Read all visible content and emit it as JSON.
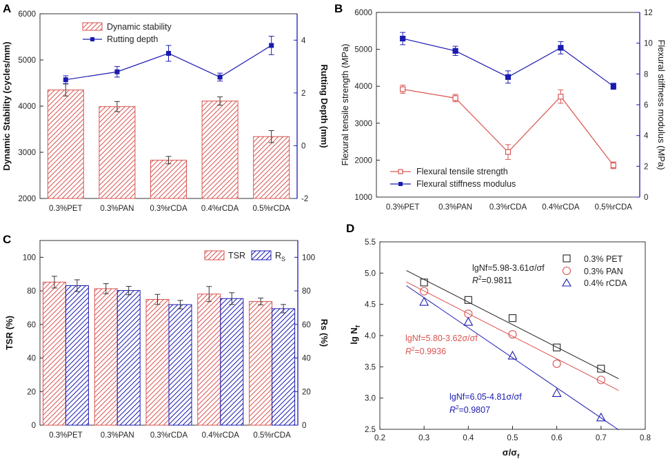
{
  "chart_data": [
    {
      "panel": "A",
      "type": "bar+line",
      "categories": [
        "0.3%PET",
        "0.3%PAN",
        "0.3%rCDA",
        "0.4%rCDA",
        "0.5%rCDA"
      ],
      "left_axis": {
        "label": "Dynamic Stability (cycles/mm)",
        "lim": [
          2000,
          6000
        ],
        "ticks": [
          2000,
          3000,
          4000,
          5000,
          6000
        ]
      },
      "right_axis": {
        "label": "Rutting Depth (mm)",
        "lim": [
          -2,
          5
        ],
        "ticks": [
          -2,
          0,
          2,
          4
        ]
      },
      "series": [
        {
          "name": "Dynamic stability",
          "kind": "bar",
          "axis": "left",
          "values": [
            4350,
            3990,
            2830,
            4110,
            3340
          ],
          "errors": [
            130,
            110,
            80,
            90,
            130
          ],
          "color": "#d9534f"
        },
        {
          "name": "Rutting depth",
          "kind": "line",
          "axis": "right",
          "values": [
            2.5,
            2.8,
            3.5,
            2.6,
            3.8
          ],
          "errors": [
            0.15,
            0.2,
            0.3,
            0.15,
            0.35
          ],
          "color": "#1a1ab0"
        }
      ]
    },
    {
      "panel": "B",
      "type": "line",
      "categories": [
        "0.3%PET",
        "0.3%PAN",
        "0.3%rCDA",
        "0.4%rCDA",
        "0.5%rCDA"
      ],
      "left_axis": {
        "label": "Flexural tensile strength (MPa)",
        "lim": [
          1000,
          6000
        ],
        "ticks": [
          1000,
          2000,
          3000,
          4000,
          5000,
          6000
        ]
      },
      "right_axis": {
        "label": "Flexural stiffness modulus (MPa)",
        "lim": [
          0,
          12
        ],
        "ticks": [
          0,
          2,
          4,
          6,
          8,
          10,
          12
        ]
      },
      "series": [
        {
          "name": "Flexural tensile strength",
          "axis": "left",
          "marker": "open-square",
          "values": [
            3920,
            3680,
            2220,
            3720,
            1860
          ],
          "errors": [
            110,
            100,
            200,
            180,
            90
          ],
          "color": "#d9534f"
        },
        {
          "name": "Flexural stiffness modulus",
          "axis": "right",
          "marker": "filled-square",
          "values": [
            10.3,
            9.5,
            7.8,
            9.7,
            7.2
          ],
          "errors": [
            0.4,
            0.3,
            0.4,
            0.4,
            0.2
          ],
          "color": "#1a1ab0"
        }
      ]
    },
    {
      "panel": "C",
      "type": "bar",
      "categories": [
        "0.3%PET",
        "0.3%PAN",
        "0.3%rCDA",
        "0.4%rCDA",
        "0.5%rCDA"
      ],
      "left_axis": {
        "label": "TSR (%)",
        "lim": [
          0,
          110
        ],
        "ticks": [
          0,
          20,
          40,
          60,
          80,
          100
        ]
      },
      "right_axis": {
        "label": "Rs (%)",
        "lim": [
          0,
          110
        ],
        "ticks": [
          0,
          20,
          40,
          60,
          80,
          100
        ]
      },
      "series": [
        {
          "name": "TSR",
          "values": [
            85.2,
            81.3,
            74.9,
            78.1,
            73.7
          ],
          "errors": [
            3.5,
            3.0,
            3.0,
            4.5,
            2.0
          ],
          "color": "#d9534f"
        },
        {
          "name": "R",
          "subscript": "S",
          "values": [
            83.1,
            80.2,
            71.8,
            75.4,
            69.4
          ],
          "errors": [
            3.5,
            2.5,
            2.5,
            3.5,
            2.5
          ],
          "color": "#1a1ab0"
        }
      ]
    },
    {
      "panel": "D",
      "type": "scatter",
      "xlabel": "σ/σ",
      "xlabel_sub": "f",
      "ylabel": "lg N",
      "ylabel_sub": "f",
      "xlim": [
        0.2,
        0.8
      ],
      "ylim": [
        2.5,
        5.5
      ],
      "xticks": [
        "0.2",
        "0.3",
        "0.4",
        "0.5",
        "0.6",
        "0.7",
        "0.8"
      ],
      "yticks": [
        "2.5",
        "3.0",
        "3.5",
        "4.0",
        "4.5",
        "5.0",
        "5.5"
      ],
      "series": [
        {
          "name": "0.3% PET",
          "marker": "square",
          "color": "#222222",
          "x": [
            0.3,
            0.4,
            0.5,
            0.6,
            0.7
          ],
          "y": [
            4.85,
            4.57,
            4.28,
            3.81,
            3.47
          ],
          "fit": {
            "intercept": 5.98,
            "slope": -3.61,
            "x_range": [
              0.26,
              0.74
            ]
          },
          "eq": "lgNf=5.98-3.61σ/σf",
          "r2_label": "R",
          "r2_value": "=0.9811"
        },
        {
          "name": "0.3% PAN",
          "marker": "circle",
          "color": "#d9534f",
          "x": [
            0.3,
            0.4,
            0.5,
            0.6,
            0.7
          ],
          "y": [
            4.71,
            4.35,
            4.02,
            3.55,
            3.29
          ],
          "fit": {
            "intercept": 5.8,
            "slope": -3.62,
            "x_range": [
              0.26,
              0.74
            ]
          },
          "eq": "lgNf=5.80-3.62σ/σf",
          "r2_label": "R",
          "r2_value": "=0.9936"
        },
        {
          "name": "0.4% rCDA",
          "marker": "triangle",
          "color": "#1a1ab0",
          "x": [
            0.3,
            0.4,
            0.5,
            0.6,
            0.7
          ],
          "y": [
            4.54,
            4.22,
            3.68,
            3.08,
            2.69
          ],
          "fit": {
            "intercept": 6.05,
            "slope": -4.81,
            "x_range": [
              0.26,
              0.74
            ]
          },
          "eq": "lgNf=6.05-4.81σ/σf",
          "r2_label": "R",
          "r2_value": "=0.9807"
        }
      ]
    }
  ]
}
